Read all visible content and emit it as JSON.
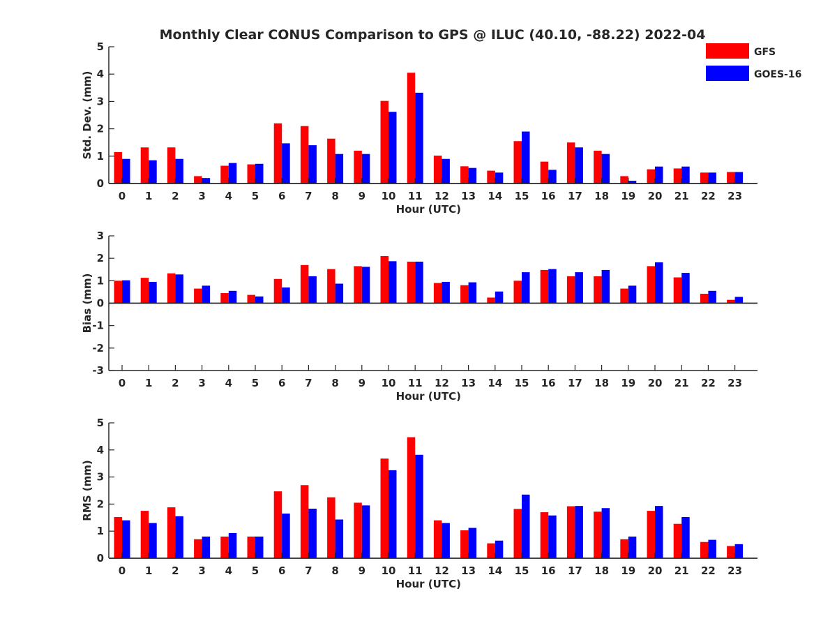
{
  "title": "Monthly Clear CONUS Comparison to GPS @ ILUC (40.10, -88.22) 2022-04",
  "legend": {
    "placement": "top-right",
    "entries": [
      {
        "name": "GFS",
        "color": "#ff0000"
      },
      {
        "name": "GOES-16",
        "color": "#0000ff"
      }
    ]
  },
  "chart_data": [
    {
      "type": "bar",
      "xlabel": "Hour (UTC)",
      "ylabel": "Std. Dev. (mm)",
      "ylim": [
        0,
        5
      ],
      "yticks": [
        0,
        1,
        2,
        3,
        4,
        5
      ],
      "categories": [
        "0",
        "1",
        "2",
        "3",
        "4",
        "5",
        "6",
        "7",
        "8",
        "9",
        "10",
        "11",
        "12",
        "13",
        "14",
        "15",
        "16",
        "17",
        "18",
        "19",
        "20",
        "21",
        "22",
        "23"
      ],
      "series": [
        {
          "name": "GFS",
          "color": "#ff0000",
          "values": [
            1.15,
            1.32,
            1.32,
            0.27,
            0.65,
            0.7,
            2.2,
            2.1,
            1.64,
            1.2,
            3.02,
            4.05,
            1.02,
            0.63,
            0.47,
            1.55,
            0.8,
            1.5,
            1.2,
            0.27,
            0.52,
            0.55,
            0.4,
            0.42
          ]
        },
        {
          "name": "GOES-16",
          "color": "#0000ff",
          "values": [
            0.9,
            0.85,
            0.9,
            0.2,
            0.75,
            0.72,
            1.47,
            1.4,
            1.08,
            1.08,
            2.62,
            3.32,
            0.9,
            0.57,
            0.4,
            1.9,
            0.5,
            1.32,
            1.08,
            0.1,
            0.62,
            0.62,
            0.4,
            0.42
          ]
        }
      ]
    },
    {
      "type": "bar",
      "xlabel": "Hour (UTC)",
      "ylabel": "Bias (mm)",
      "ylim": [
        -3,
        3
      ],
      "yticks": [
        -3,
        -2,
        -1,
        0,
        1,
        2,
        3
      ],
      "categories": [
        "0",
        "1",
        "2",
        "3",
        "4",
        "5",
        "6",
        "7",
        "8",
        "9",
        "10",
        "11",
        "12",
        "13",
        "14",
        "15",
        "16",
        "17",
        "18",
        "19",
        "20",
        "21",
        "22",
        "23"
      ],
      "series": [
        {
          "name": "GFS",
          "color": "#ff0000",
          "values": [
            1.0,
            1.13,
            1.33,
            0.65,
            0.45,
            0.37,
            1.08,
            1.7,
            1.52,
            1.65,
            2.1,
            1.85,
            0.9,
            0.8,
            0.25,
            1.0,
            1.48,
            1.2,
            1.2,
            0.65,
            1.65,
            1.15,
            0.42,
            0.15
          ]
        },
        {
          "name": "GOES-16",
          "color": "#0000ff",
          "values": [
            1.02,
            0.95,
            1.28,
            0.78,
            0.55,
            0.3,
            0.7,
            1.2,
            0.87,
            1.62,
            1.87,
            1.85,
            0.95,
            0.93,
            0.52,
            1.38,
            1.52,
            1.38,
            1.48,
            0.78,
            1.82,
            1.35,
            0.55,
            0.28
          ]
        }
      ]
    },
    {
      "type": "bar",
      "xlabel": "Hour (UTC)",
      "ylabel": "RMS (mm)",
      "ylim": [
        0,
        5
      ],
      "yticks": [
        0,
        1,
        2,
        3,
        4,
        5
      ],
      "categories": [
        "0",
        "1",
        "2",
        "3",
        "4",
        "5",
        "6",
        "7",
        "8",
        "9",
        "10",
        "11",
        "12",
        "13",
        "14",
        "15",
        "16",
        "17",
        "18",
        "19",
        "20",
        "21",
        "22",
        "23"
      ],
      "series": [
        {
          "name": "GFS",
          "color": "#ff0000",
          "values": [
            1.52,
            1.75,
            1.88,
            0.7,
            0.8,
            0.8,
            2.47,
            2.7,
            2.25,
            2.05,
            3.68,
            4.47,
            1.4,
            1.03,
            0.55,
            1.82,
            1.7,
            1.92,
            1.72,
            0.7,
            1.75,
            1.27,
            0.6,
            0.45
          ]
        },
        {
          "name": "GOES-16",
          "color": "#0000ff",
          "values": [
            1.4,
            1.3,
            1.55,
            0.8,
            0.93,
            0.8,
            1.65,
            1.83,
            1.43,
            1.95,
            3.25,
            3.82,
            1.3,
            1.12,
            0.65,
            2.35,
            1.58,
            1.93,
            1.85,
            0.8,
            1.93,
            1.52,
            0.68,
            0.52
          ]
        }
      ]
    }
  ]
}
